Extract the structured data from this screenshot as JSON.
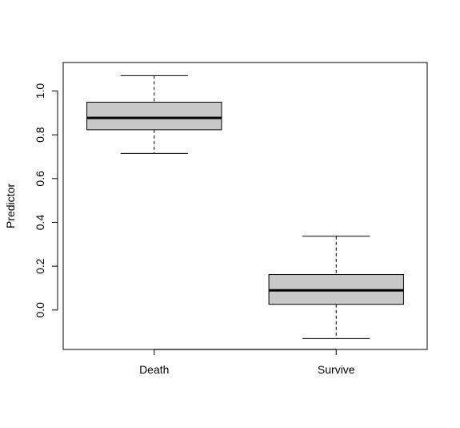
{
  "chart_data": {
    "type": "boxplot",
    "title": "",
    "xlabel": "",
    "ylabel": "Predictor",
    "categories": [
      "Death",
      "Survive"
    ],
    "boxes": [
      {
        "category": "Death",
        "whisker_low": 0.715,
        "q1": 0.823,
        "median": 0.877,
        "q3": 0.949,
        "whisker_high": 1.07
      },
      {
        "category": "Survive",
        "whisker_low": -0.13,
        "q1": 0.026,
        "median": 0.09,
        "q3": 0.162,
        "whisker_high": 0.337
      }
    ],
    "y_ticks": [
      "0.0",
      "0.2",
      "0.4",
      "0.6",
      "0.8",
      "1.0"
    ],
    "ylim": [
      -0.18,
      1.13
    ],
    "grid": false,
    "legend": "none",
    "box_fill": "#c8c8c8",
    "line_color": "#000000"
  }
}
